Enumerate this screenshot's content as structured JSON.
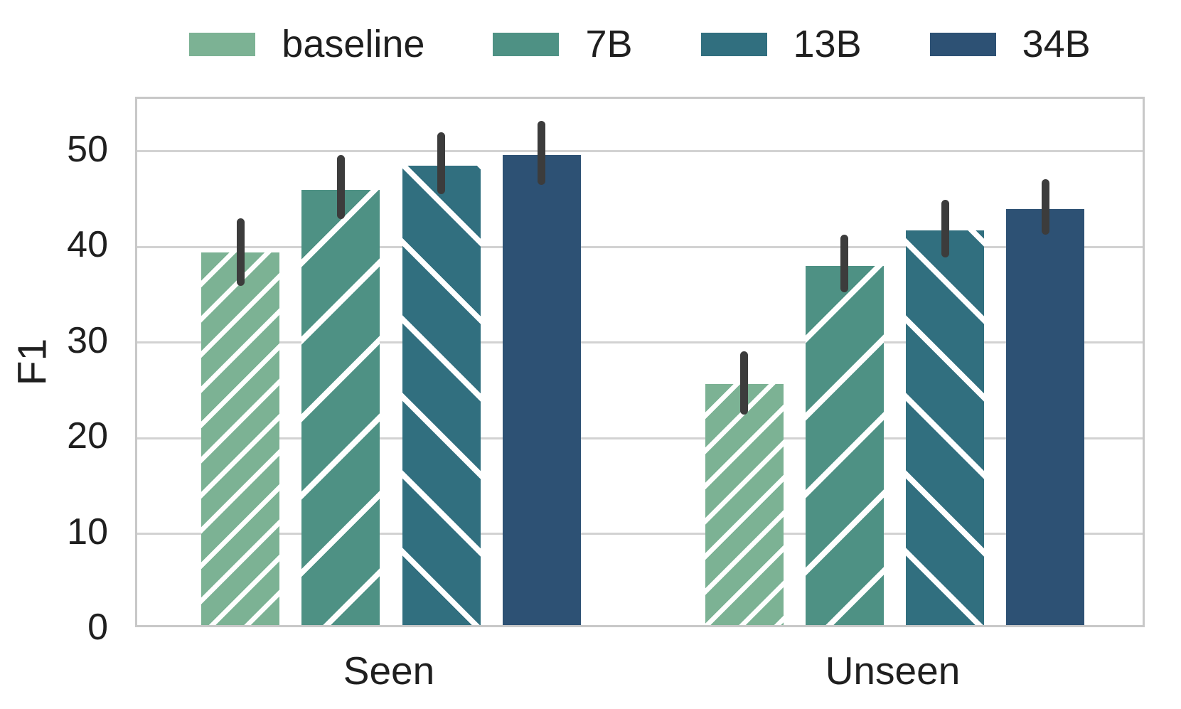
{
  "chart_data": {
    "type": "bar",
    "title": "",
    "ylabel": "F1",
    "xlabel": "",
    "categories": [
      "Seen",
      "Unseen"
    ],
    "series": [
      {
        "name": "baseline",
        "color": "#7CB294",
        "hatch": "diagonal-dense",
        "values": [
          39.4,
          25.7
        ],
        "err_low": [
          35.9,
          22.5
        ],
        "err_high": [
          43.0,
          29.1
        ]
      },
      {
        "name": "7B",
        "color": "#4E9184",
        "hatch": "diagonal",
        "values": [
          46.0,
          38.0
        ],
        "err_low": [
          42.9,
          35.3
        ],
        "err_high": [
          49.6,
          41.3
        ]
      },
      {
        "name": "13B",
        "color": "#316F7F",
        "hatch": "back-diagonal",
        "values": [
          48.5,
          41.7
        ],
        "err_low": [
          45.5,
          38.9
        ],
        "err_high": [
          52.0,
          44.9
        ]
      },
      {
        "name": "34B",
        "color": "#2D5174",
        "hatch": "solid",
        "values": [
          49.6,
          44.0
        ],
        "err_low": [
          46.5,
          41.3
        ],
        "err_high": [
          53.2,
          47.1
        ]
      }
    ],
    "yticks": [
      0,
      10,
      20,
      30,
      40,
      50
    ],
    "ylim": [
      0,
      55.5
    ],
    "grid": "horizontal",
    "legend_position": "top",
    "error_bars": true,
    "colors": {
      "grid": "#d2d2d2",
      "frame": "#c8c8c8",
      "error_bar": "#3c3c3c",
      "text": "#1f1f1f",
      "background": "#ffffff"
    }
  }
}
